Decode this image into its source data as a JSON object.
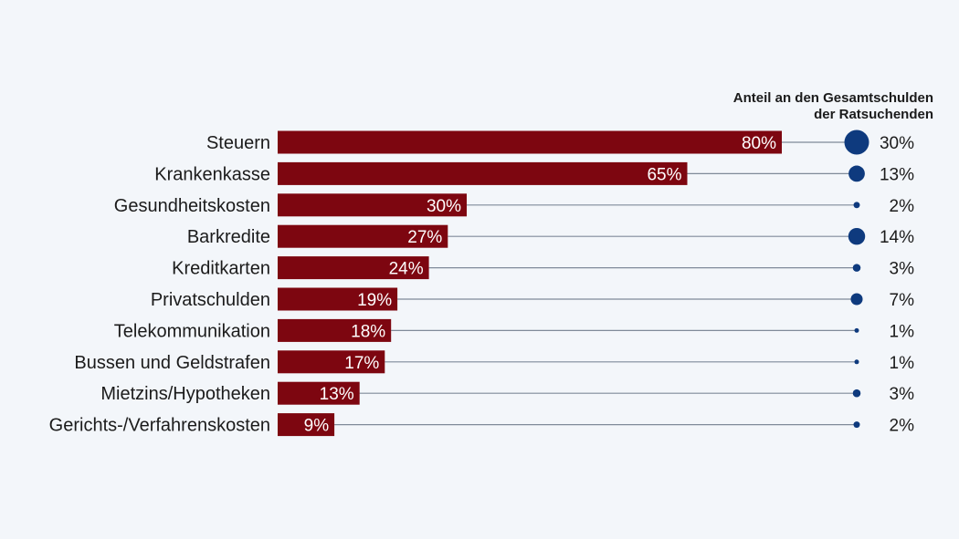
{
  "chart_data": {
    "type": "bar",
    "orientation": "horizontal",
    "categories": [
      "Steuern",
      "Krankenkasse",
      "Gesundheitskosten",
      "Barkredite",
      "Kreditkarten",
      "Privatschulden",
      "Telekommunikation",
      "Bussen und Geldstrafen",
      "Mietzins/Hypotheken",
      "Gerichts-/Verfahrenskosten"
    ],
    "values": [
      80,
      65,
      30,
      27,
      24,
      19,
      18,
      17,
      13,
      9
    ],
    "value_labels": [
      "80%",
      "65%",
      "30%",
      "27%",
      "24%",
      "19%",
      "18%",
      "17%",
      "13%",
      "9%"
    ],
    "xlim": [
      0,
      80
    ],
    "share_title_lines": [
      "Anteil an den Gesamtschulden",
      "der Ratsuchenden"
    ],
    "share_values": [
      30,
      13,
      2,
      14,
      3,
      7,
      1,
      1,
      3,
      2
    ],
    "share_labels": [
      "30%",
      "13%",
      "2%",
      "14%",
      "3%",
      "7%",
      "1%",
      "1%",
      "3%",
      "2%"
    ],
    "colors": {
      "bar": "#7d0610",
      "bubble": "#0e3a7e",
      "connector": "#7f8a99",
      "background": "#f3f6fa"
    },
    "grid": false,
    "legend": "none"
  }
}
